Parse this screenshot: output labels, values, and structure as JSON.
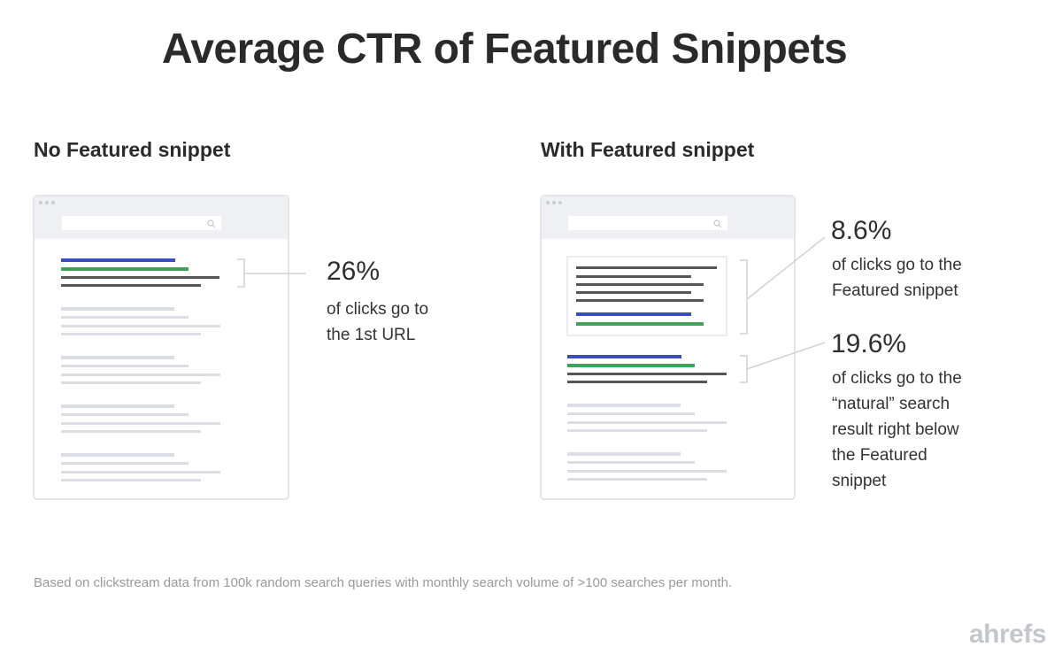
{
  "title": "Average CTR of Featured Snippets",
  "left": {
    "heading": "No Featured snippet",
    "stat_value": "26%",
    "stat_line1": "of clicks go to",
    "stat_line2": "the 1st URL"
  },
  "right": {
    "heading": "With Featured snippet",
    "snippet_stat": {
      "value": "8.6%",
      "line1": "of clicks go to the",
      "line2": "Featured snippet"
    },
    "organic_stat": {
      "value": "19.6%",
      "line1": "of clicks go to the",
      "line2": "“natural” search",
      "line3": "result right below",
      "line4": "the Featured",
      "line5": "snippet"
    }
  },
  "footnote": "Based on clickstream data from 100k random search queries with monthly search volume of >100 searches per month.",
  "brand": "ahrefs",
  "colors": {
    "link_blue": "#3b4bc4",
    "url_green": "#3fa15a",
    "text_dark": "#555555",
    "placeholder_gray": "#dadde2",
    "window_border": "#e3e5e8",
    "toolbar_bg": "#eef0f3"
  }
}
